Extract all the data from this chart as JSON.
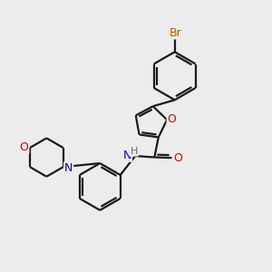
{
  "background_color": "#ececec",
  "bond_color": "#1a1a1a",
  "bond_width": 1.6,
  "atom_colors": {
    "Br": "#b85c00",
    "O": "#dd0000",
    "N": "#0000cc",
    "H": "#666666"
  },
  "figsize": [
    3.0,
    3.0
  ],
  "dpi": 100,
  "xlim": [
    0,
    10
  ],
  "ylim": [
    0,
    10
  ]
}
